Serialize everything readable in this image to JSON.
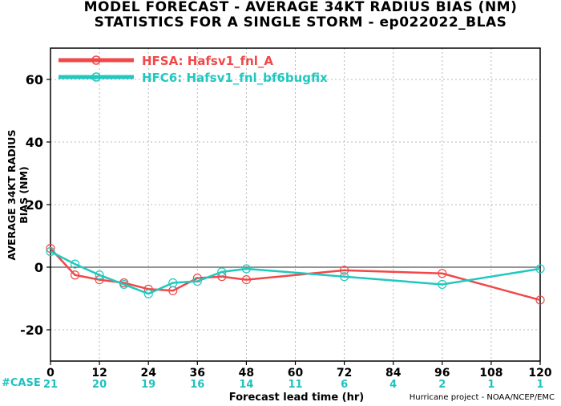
{
  "chart_data": {
    "type": "line",
    "title": "MODEL FORECAST - AVERAGE 34KT RADIUS BIAS (NM)",
    "subtitle": "STATISTICS FOR A SINGLE STORM - ep022022_BLAS",
    "xlabel": "Forecast lead time (hr)",
    "ylabel": "AVERAGE 34KT RADIUS BIAS (NM)",
    "xlim": [
      0,
      120
    ],
    "ylim": [
      -30,
      70
    ],
    "x_ticks": [
      "0",
      "12",
      "24",
      "36",
      "48",
      "60",
      "72",
      "84",
      "96",
      "108",
      "120"
    ],
    "y_ticks": [
      "-20",
      "0",
      "20",
      "40",
      "60"
    ],
    "grid": true,
    "legend_position": "top-left",
    "series": [
      {
        "name": "HFSA: Hafsv1_fnl_A",
        "color": "#f04848",
        "x": [
          0,
          6,
          12,
          18,
          24,
          30,
          36,
          42,
          48,
          72,
          96,
          120
        ],
        "y": [
          6,
          -2.5,
          -4,
          -5,
          -7,
          -7.5,
          -3.5,
          -3,
          -4,
          -1,
          -2,
          -10.5
        ]
      },
      {
        "name": "HFC6: Hafsv1_fnl_bf6bugfix",
        "color": "#20c8c0",
        "x": [
          0,
          6,
          12,
          18,
          24,
          30,
          36,
          42,
          48,
          72,
          96,
          120
        ],
        "y": [
          5,
          1,
          -2.5,
          -5.5,
          -8.5,
          -5,
          -4.5,
          -1.5,
          -0.5,
          -3,
          -5.5,
          -0.5
        ]
      }
    ],
    "case_label": "#CASE",
    "case_counts": [
      {
        "x": 0,
        "label": "21"
      },
      {
        "x": 12,
        "label": "20"
      },
      {
        "x": 24,
        "label": "19"
      },
      {
        "x": 36,
        "label": "16"
      },
      {
        "x": 48,
        "label": "14"
      },
      {
        "x": 60,
        "label": "11"
      },
      {
        "x": 72,
        "label": "6"
      },
      {
        "x": 84,
        "label": "4"
      },
      {
        "x": 96,
        "label": "2"
      },
      {
        "x": 108,
        "label": "1"
      },
      {
        "x": 120,
        "label": "1"
      }
    ],
    "credit": "Hurricane project - NOAA/NCEP/EMC"
  }
}
